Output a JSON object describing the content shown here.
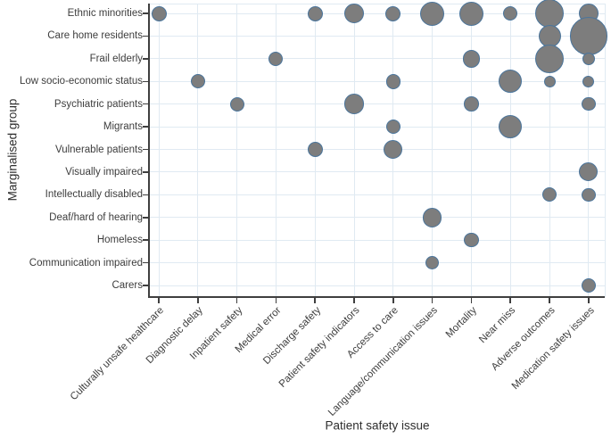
{
  "chart_data": {
    "type": "scatter",
    "subtype": "bubble",
    "title": "",
    "xlabel": "Patient safety issue",
    "ylabel": "Marginalised group",
    "grid": true,
    "legend": null,
    "x_categories": [
      "Culturally unsafe healthcare",
      "Diagnostic delay",
      "Inpatient safety",
      "Medical error",
      "Discharge safety",
      "Patient safety indicators",
      "Access to care",
      "Language/communication issues",
      "Mortality",
      "Near miss",
      "Adverse outcomes",
      "Medication safety issues"
    ],
    "y_categories": [
      "Ethnic minorities",
      "Care home residents",
      "Frail elderly",
      "Low socio-economic status",
      "Psychiatric patients",
      "Migrants",
      "Vulnerable patients",
      "Visually impaired",
      "Intellectually disabled",
      "Deaf/hard of hearing",
      "Homeless",
      "Communication impaired",
      "Carers"
    ],
    "size_note": "r is bubble radius in px, proportional to relative frequency",
    "points": [
      {
        "x": "Culturally unsafe healthcare",
        "y": "Ethnic minorities",
        "r": 8.5
      },
      {
        "x": "Discharge safety",
        "y": "Ethnic minorities",
        "r": 8.5
      },
      {
        "x": "Patient safety indicators",
        "y": "Ethnic minorities",
        "r": 11
      },
      {
        "x": "Access to care",
        "y": "Ethnic minorities",
        "r": 8.5
      },
      {
        "x": "Language/communication issues",
        "y": "Ethnic minorities",
        "r": 13.5
      },
      {
        "x": "Mortality",
        "y": "Ethnic minorities",
        "r": 13.5
      },
      {
        "x": "Near miss",
        "y": "Ethnic minorities",
        "r": 8
      },
      {
        "x": "Adverse outcomes",
        "y": "Ethnic minorities",
        "r": 16.2
      },
      {
        "x": "Medication safety issues",
        "y": "Ethnic minorities",
        "r": 11
      },
      {
        "x": "Adverse outcomes",
        "y": "Care home residents",
        "r": 12.5
      },
      {
        "x": "Medication safety issues",
        "y": "Care home residents",
        "r": 21.3
      },
      {
        "x": "Medical error",
        "y": "Frail elderly",
        "r": 8
      },
      {
        "x": "Mortality",
        "y": "Frail elderly",
        "r": 9.8
      },
      {
        "x": "Adverse outcomes",
        "y": "Frail elderly",
        "r": 16
      },
      {
        "x": "Medication safety issues",
        "y": "Frail elderly",
        "r": 7
      },
      {
        "x": "Diagnostic delay",
        "y": "Low socio-economic status",
        "r": 8
      },
      {
        "x": "Access to care",
        "y": "Low socio-economic status",
        "r": 8.3
      },
      {
        "x": "Near miss",
        "y": "Low socio-economic status",
        "r": 13
      },
      {
        "x": "Adverse outcomes",
        "y": "Low socio-economic status",
        "r": 6.5
      },
      {
        "x": "Medication safety issues",
        "y": "Low socio-economic status",
        "r": 6.5
      },
      {
        "x": "Inpatient safety",
        "y": "Psychiatric patients",
        "r": 8
      },
      {
        "x": "Patient safety indicators",
        "y": "Psychiatric patients",
        "r": 11.3
      },
      {
        "x": "Mortality",
        "y": "Psychiatric patients",
        "r": 8.3
      },
      {
        "x": "Medication safety issues",
        "y": "Psychiatric patients",
        "r": 7.8
      },
      {
        "x": "Access to care",
        "y": "Migrants",
        "r": 8.3
      },
      {
        "x": "Near miss",
        "y": "Migrants",
        "r": 13
      },
      {
        "x": "Discharge safety",
        "y": "Vulnerable patients",
        "r": 8.5
      },
      {
        "x": "Access to care",
        "y": "Vulnerable patients",
        "r": 10.5
      },
      {
        "x": "Medication safety issues",
        "y": "Visually impaired",
        "r": 10.5
      },
      {
        "x": "Adverse outcomes",
        "y": "Intellectually disabled",
        "r": 8
      },
      {
        "x": "Medication safety issues",
        "y": "Intellectually disabled",
        "r": 7.8
      },
      {
        "x": "Language/communication issues",
        "y": "Deaf/hard of hearing",
        "r": 10.8
      },
      {
        "x": "Mortality",
        "y": "Homeless",
        "r": 8.3
      },
      {
        "x": "Language/communication issues",
        "y": "Communication impaired",
        "r": 7.8
      },
      {
        "x": "Medication safety issues",
        "y": "Carers",
        "r": 8.3
      }
    ],
    "colors": {
      "bubble_fill": "#7d7d7d",
      "bubble_stroke": "#4a759c",
      "gridline": "#e0eaf2",
      "axis": "#3f3f3f",
      "text": "#3d3d3d"
    }
  }
}
